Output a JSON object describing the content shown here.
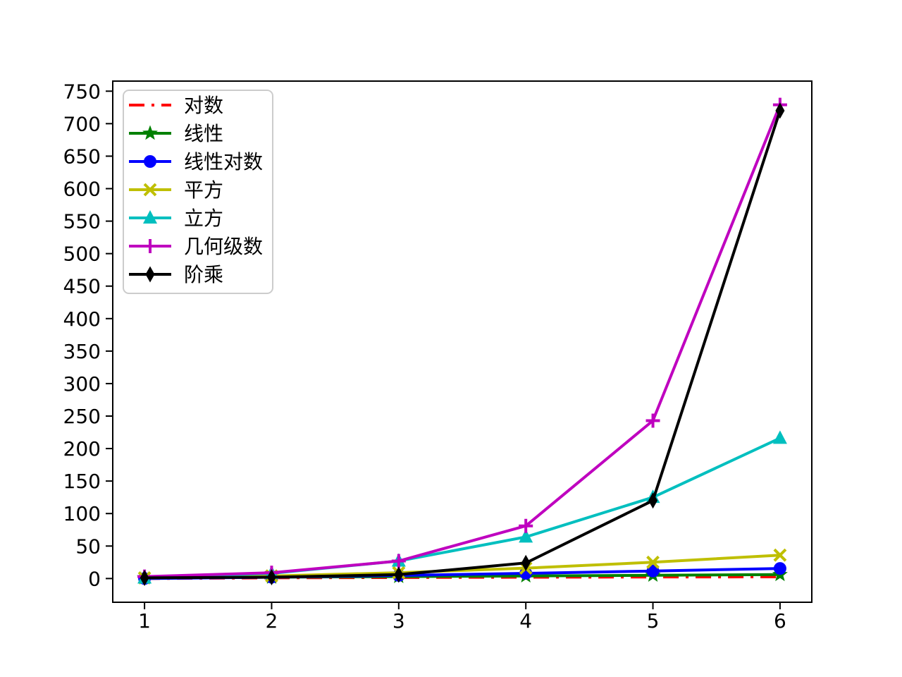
{
  "chart_data": {
    "type": "line",
    "title": "",
    "xlabel": "",
    "ylabel": "",
    "grid": false,
    "legend_position": "upper left",
    "x": [
      1,
      2,
      3,
      4,
      5,
      6
    ],
    "xlim": [
      0.75,
      6.25
    ],
    "ylim": [
      -36.5,
      765.5
    ],
    "xticks": [
      1,
      2,
      3,
      4,
      5,
      6
    ],
    "yticks": [
      0,
      50,
      100,
      150,
      200,
      250,
      300,
      350,
      400,
      450,
      500,
      550,
      600,
      650,
      700,
      750
    ],
    "series": [
      {
        "key": "logarithmic",
        "name": "对数",
        "color": "#ff0000",
        "marker": "none",
        "linestyle": "dashdot",
        "values": [
          0,
          1,
          1.58,
          2,
          2.32,
          2.58
        ]
      },
      {
        "key": "linear",
        "name": "线性",
        "color": "#008000",
        "marker": "star",
        "linestyle": "solid",
        "values": [
          1,
          2,
          3,
          4,
          5,
          6
        ]
      },
      {
        "key": "linearithmic",
        "name": "线性对数",
        "color": "#0000ff",
        "marker": "circle",
        "linestyle": "solid",
        "values": [
          0,
          2,
          4.75,
          8,
          11.61,
          15.51
        ]
      },
      {
        "key": "quadratic",
        "name": "平方",
        "color": "#bfbf00",
        "marker": "x",
        "linestyle": "solid",
        "values": [
          1,
          4,
          9,
          16,
          25,
          36
        ]
      },
      {
        "key": "cubic",
        "name": "立方",
        "color": "#00bfbf",
        "marker": "triangle-up",
        "linestyle": "solid",
        "values": [
          1,
          8,
          27,
          64,
          125,
          216
        ]
      },
      {
        "key": "geometric",
        "name": "几何级数",
        "color": "#bf00bf",
        "marker": "plus",
        "linestyle": "solid",
        "values": [
          3,
          9,
          27,
          81,
          243,
          729
        ]
      },
      {
        "key": "factorial",
        "name": "阶乘",
        "color": "#000000",
        "marker": "thin-diamond",
        "linestyle": "solid",
        "values": [
          1,
          2,
          6,
          24,
          120,
          720
        ]
      }
    ],
    "style": {
      "line_width": 4,
      "tick_font_size": 28,
      "legend_font_size": 28,
      "spine_color": "#000000",
      "legend_border_color": "#cccccc",
      "background": "#ffffff"
    }
  }
}
